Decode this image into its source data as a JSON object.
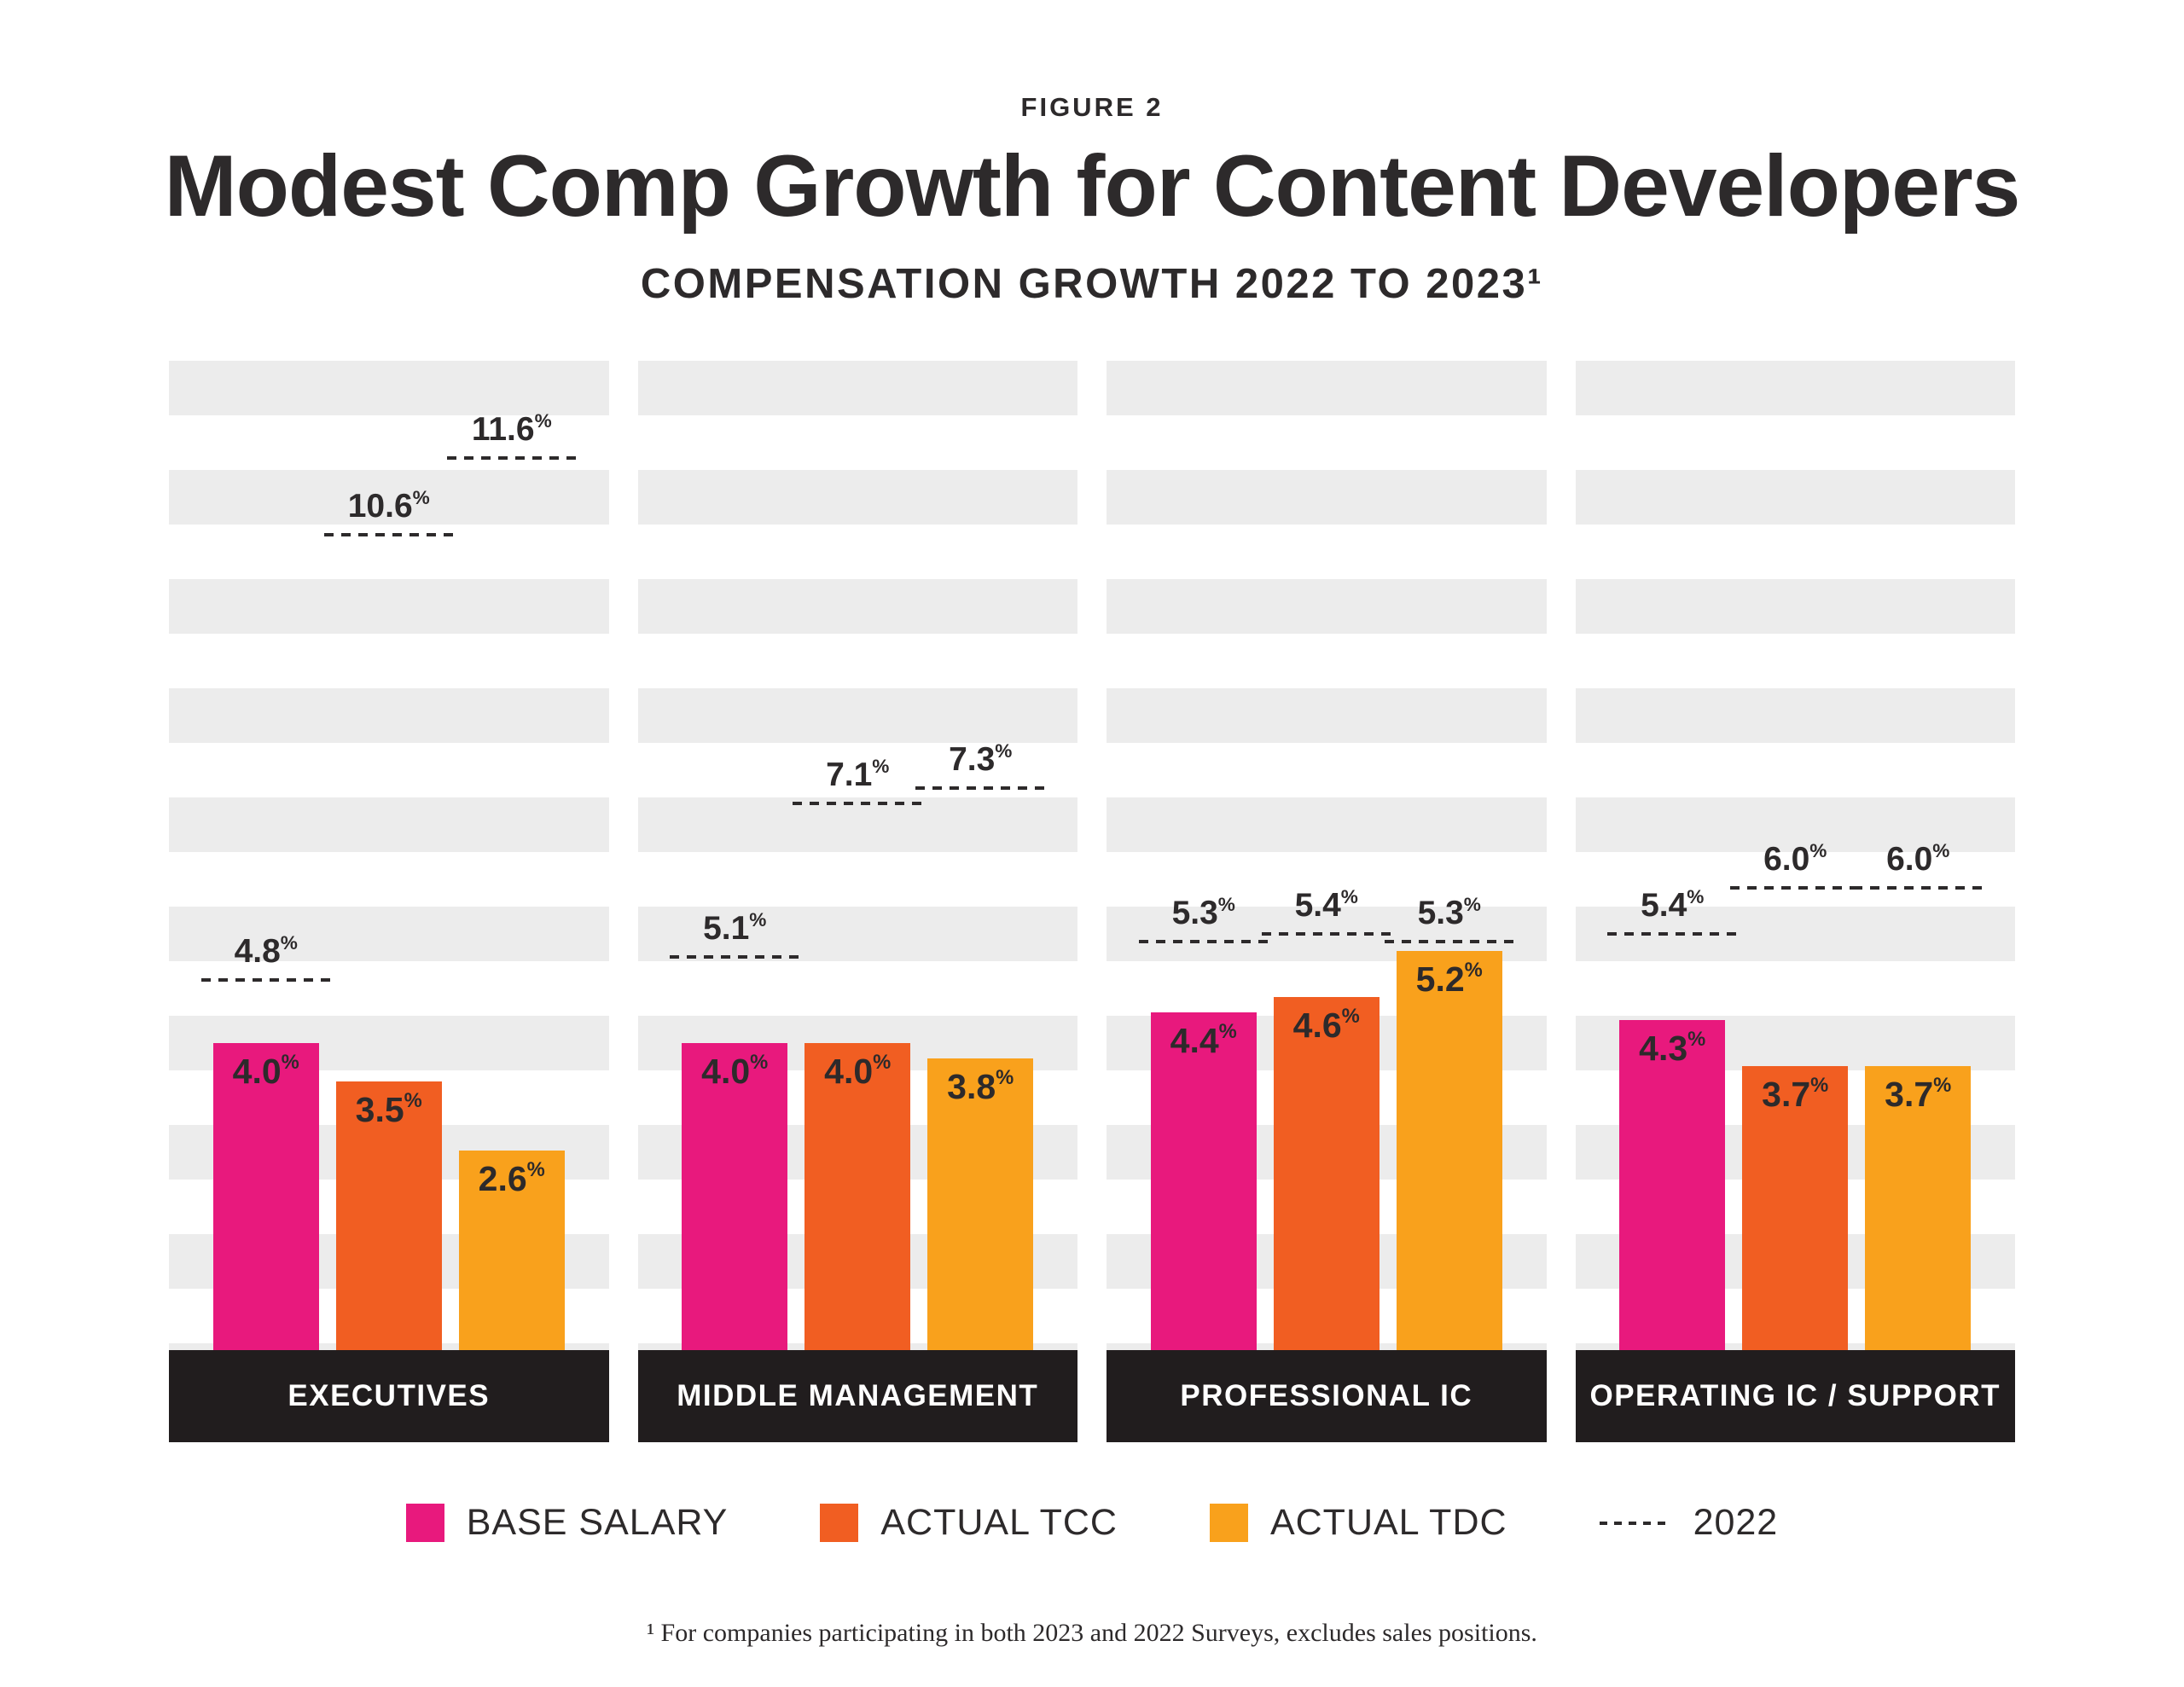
{
  "figure_label": "FIGURE 2",
  "title": "Modest Comp Growth for Content Developers",
  "subtitle": "COMPENSATION GROWTH 2022 TO 2023¹",
  "footnote": "¹ For companies participating in both 2023 and 2022 Surveys, excludes sales positions.",
  "colors": {
    "base_salary": "#E8197D",
    "actual_tcc": "#F15E22",
    "actual_tdc": "#F9A11C",
    "stripe": "#ECECEC",
    "group_bar": "#211D1E",
    "text": "#2D2A2B"
  },
  "legend": [
    {
      "label": "BASE SALARY",
      "color": "#E8197D",
      "type": "swatch"
    },
    {
      "label": "ACTUAL TCC",
      "color": "#F15E22",
      "type": "swatch"
    },
    {
      "label": "ACTUAL TDC",
      "color": "#F9A11C",
      "type": "swatch"
    },
    {
      "label": "2022",
      "type": "dashed"
    }
  ],
  "chart_data": {
    "type": "bar",
    "unit": "%",
    "ylim": [
      0,
      12.9
    ],
    "grid": "horizontal-stripes",
    "legend_position": "bottom",
    "categories": [
      "EXECUTIVES",
      "MIDDLE MANAGEMENT",
      "PROFESSIONAL IC",
      "OPERATING IC / SUPPORT"
    ],
    "series": [
      {
        "name": "BASE SALARY",
        "color": "#E8197D",
        "values": [
          4.0,
          4.0,
          4.4,
          4.3
        ]
      },
      {
        "name": "ACTUAL TCC",
        "color": "#F15E22",
        "values": [
          3.5,
          4.0,
          4.6,
          3.7
        ]
      },
      {
        "name": "ACTUAL TDC",
        "color": "#F9A11C",
        "values": [
          2.6,
          3.8,
          5.2,
          3.7
        ]
      }
    ],
    "series_2022_markers": [
      {
        "name": "BASE SALARY 2022",
        "values": [
          4.8,
          5.1,
          5.3,
          5.4
        ]
      },
      {
        "name": "ACTUAL TCC 2022",
        "values": [
          10.6,
          7.1,
          5.4,
          6.0
        ]
      },
      {
        "name": "ACTUAL TDC 2022",
        "values": [
          11.6,
          7.3,
          5.3,
          6.0
        ]
      }
    ]
  }
}
